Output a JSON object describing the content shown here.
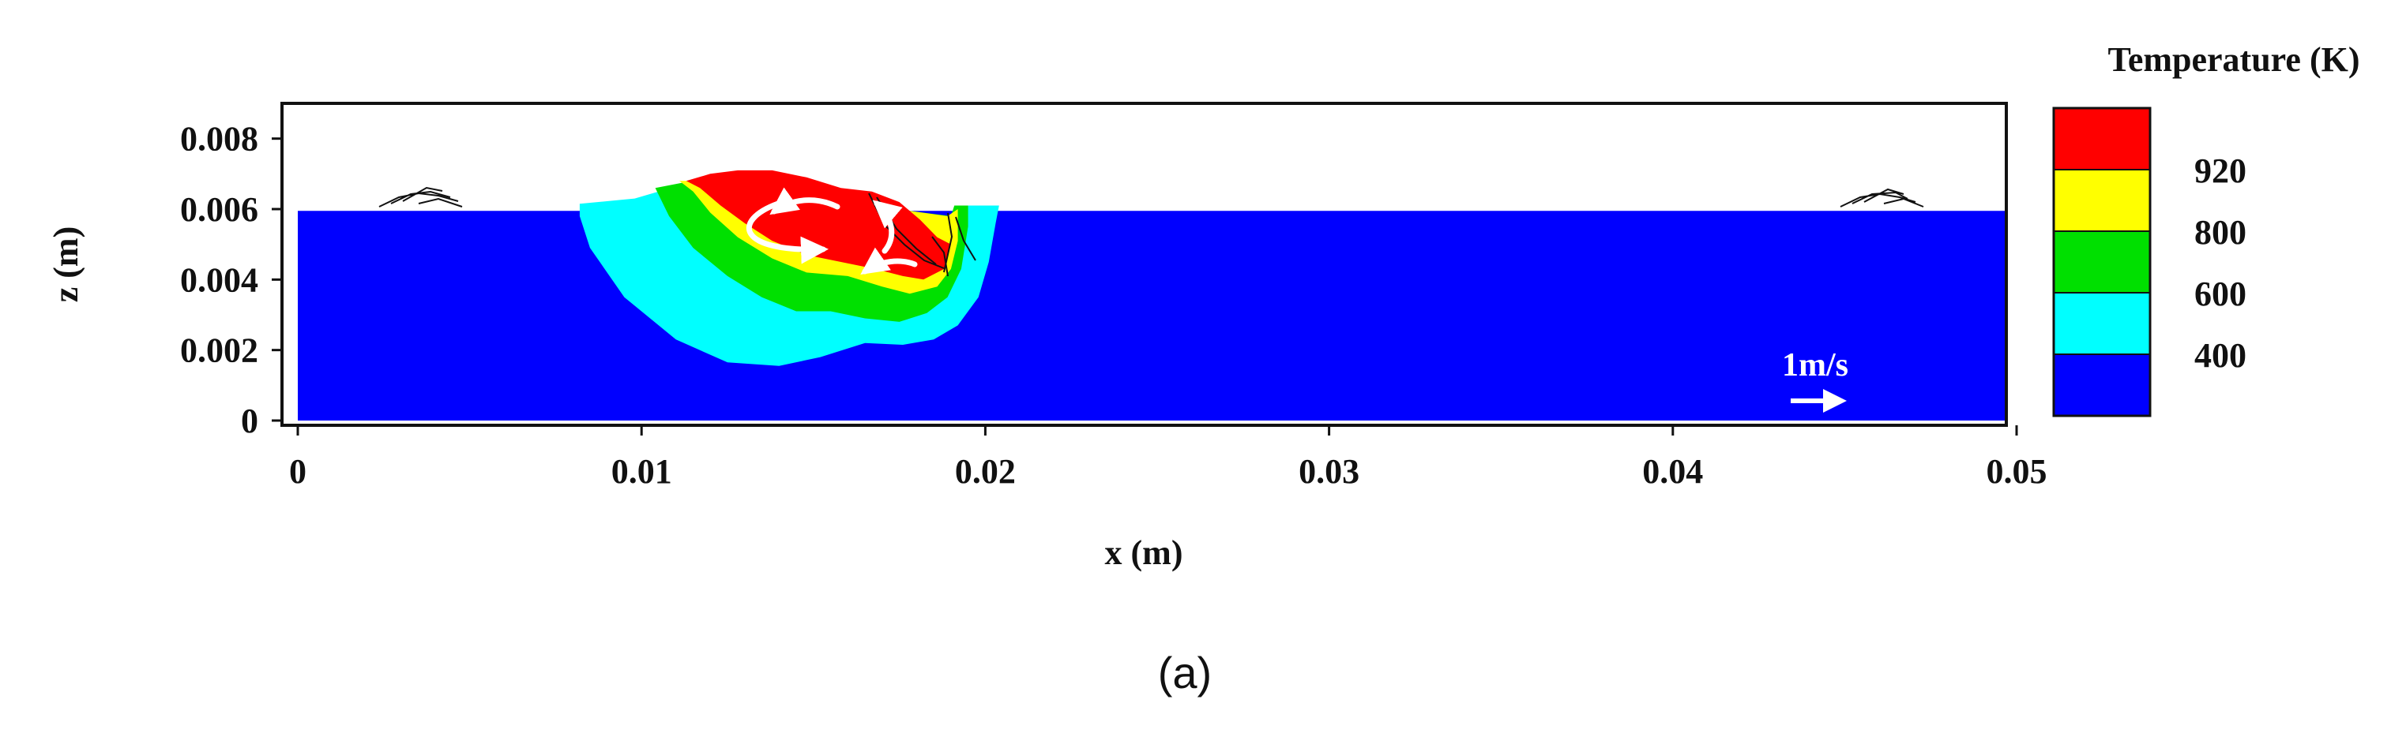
{
  "caption": "(a)",
  "chart_data": {
    "type": "heatmap",
    "title": "",
    "xlabel": "x (m)",
    "ylabel": "z (m)",
    "xlim": [
      0,
      0.05
    ],
    "ylim": [
      0,
      0.009
    ],
    "x_ticks": [
      0,
      0.01,
      0.02,
      0.03,
      0.04,
      0.05
    ],
    "x_tick_labels": [
      "0",
      "0.01",
      "0.02",
      "0.03",
      "0.04",
      "0.05"
    ],
    "y_ticks": [
      0,
      0.002,
      0.004,
      0.006,
      0.008
    ],
    "y_tick_labels": [
      "0",
      "0.002",
      "0.004",
      "0.006",
      "0.008"
    ],
    "grid": false,
    "velocity_reference": {
      "label": "1m/s",
      "magnitude": 1
    },
    "colorbar": {
      "title": "Temperature (K)",
      "tick_labels": [
        "400",
        "600",
        "800",
        "920"
      ],
      "levels": [
        {
          "color": "#0000ff"
        },
        {
          "color": "#00ffff"
        },
        {
          "color": "#00e000"
        },
        {
          "color": "#ffff00"
        },
        {
          "color": "#ff0000"
        }
      ]
    },
    "regions": [
      {
        "color": "#0000ff",
        "outline": [
          [
            0.0,
            0.0
          ],
          [
            0.05,
            0.0
          ],
          [
            0.05,
            0.00595
          ],
          [
            0.0,
            0.00595
          ]
        ]
      },
      {
        "color": "#00ffff",
        "outline": [
          [
            0.0082,
            0.00615
          ],
          [
            0.0098,
            0.0063
          ],
          [
            0.0112,
            0.0067
          ],
          [
            0.0113,
            0.00665
          ],
          [
            0.0117,
            0.0066
          ],
          [
            0.019,
            0.0057
          ],
          [
            0.0193,
            0.0061
          ],
          [
            0.0204,
            0.0061
          ],
          [
            0.0203,
            0.0056
          ],
          [
            0.0201,
            0.0045
          ],
          [
            0.0198,
            0.0035
          ],
          [
            0.0192,
            0.0027
          ],
          [
            0.0185,
            0.0023
          ],
          [
            0.0176,
            0.00215
          ],
          [
            0.0165,
            0.0022
          ],
          [
            0.0152,
            0.0018
          ],
          [
            0.014,
            0.00155
          ],
          [
            0.0125,
            0.00165
          ],
          [
            0.011,
            0.0023
          ],
          [
            0.0095,
            0.0035
          ],
          [
            0.0085,
            0.0049
          ],
          [
            0.0082,
            0.0058
          ]
        ]
      },
      {
        "color": "#00e000",
        "outline": [
          [
            0.0104,
            0.0066
          ],
          [
            0.0112,
            0.00675
          ],
          [
            0.019,
            0.0058
          ],
          [
            0.0191,
            0.0061
          ],
          [
            0.0195,
            0.0061
          ],
          [
            0.0195,
            0.0055
          ],
          [
            0.0193,
            0.0043
          ],
          [
            0.0189,
            0.0035
          ],
          [
            0.0183,
            0.00305
          ],
          [
            0.0175,
            0.0028
          ],
          [
            0.0165,
            0.0029
          ],
          [
            0.0155,
            0.0031
          ],
          [
            0.0145,
            0.0031
          ],
          [
            0.0135,
            0.0035
          ],
          [
            0.0125,
            0.0041
          ],
          [
            0.0115,
            0.0049
          ],
          [
            0.0108,
            0.0058
          ]
        ]
      },
      {
        "color": "#ffff00",
        "outline": [
          [
            0.0111,
            0.0068
          ],
          [
            0.0116,
            0.0068
          ],
          [
            0.0189,
            0.0058
          ],
          [
            0.0192,
            0.006
          ],
          [
            0.0192,
            0.0051
          ],
          [
            0.019,
            0.0043
          ],
          [
            0.0186,
            0.0038
          ],
          [
            0.0178,
            0.0036
          ],
          [
            0.017,
            0.0038
          ],
          [
            0.016,
            0.0041
          ],
          [
            0.0148,
            0.0042
          ],
          [
            0.0138,
            0.0046
          ],
          [
            0.0128,
            0.0052
          ],
          [
            0.012,
            0.0059
          ],
          [
            0.0115,
            0.0065
          ]
        ]
      },
      {
        "color": "#ff0000",
        "outline": [
          [
            0.0113,
            0.0068
          ],
          [
            0.012,
            0.007
          ],
          [
            0.0128,
            0.0071
          ],
          [
            0.0138,
            0.0071
          ],
          [
            0.0148,
            0.0069
          ],
          [
            0.0158,
            0.0066
          ],
          [
            0.0167,
            0.0065
          ],
          [
            0.0175,
            0.0062
          ],
          [
            0.0181,
            0.0057
          ],
          [
            0.0186,
            0.0052
          ],
          [
            0.019,
            0.005
          ],
          [
            0.0188,
            0.0043
          ],
          [
            0.0182,
            0.004
          ],
          [
            0.0176,
            0.0041
          ],
          [
            0.0168,
            0.0043
          ],
          [
            0.0158,
            0.0045
          ],
          [
            0.0148,
            0.0047
          ],
          [
            0.0138,
            0.0051
          ],
          [
            0.013,
            0.0056
          ],
          [
            0.0123,
            0.0061
          ],
          [
            0.0117,
            0.0066
          ]
        ]
      }
    ]
  }
}
